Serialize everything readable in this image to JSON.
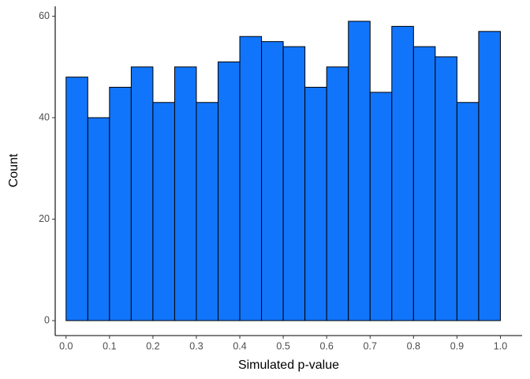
{
  "chart_data": {
    "type": "histogram",
    "x_label": "Simulated p-value",
    "y_label": "Count",
    "bins": [
      0.0,
      0.05,
      0.1,
      0.15,
      0.2,
      0.25,
      0.3,
      0.35,
      0.4,
      0.45,
      0.5,
      0.55,
      0.6,
      0.65,
      0.7,
      0.75,
      0.8,
      0.85,
      0.9,
      0.95,
      1.0
    ],
    "values": [
      48,
      40,
      46,
      50,
      43,
      50,
      43,
      51,
      56,
      55,
      54,
      46,
      50,
      59,
      45,
      58,
      54,
      52,
      43,
      57
    ],
    "color": "#1175fb",
    "edgecolor": "#000000",
    "xlim": [
      -0.025,
      1.05
    ],
    "xticks": [
      {
        "value": 0,
        "label": "0.0"
      },
      0.1,
      0.2,
      0.3,
      0.4,
      0.5,
      0.6,
      0.7,
      0.8,
      0.9,
      {
        "value": 1,
        "label": "1.0"
      }
    ],
    "ylim": [
      -2.95,
      61.95
    ],
    "yticks": [
      0,
      20,
      40,
      60
    ],
    "grid": false
  }
}
